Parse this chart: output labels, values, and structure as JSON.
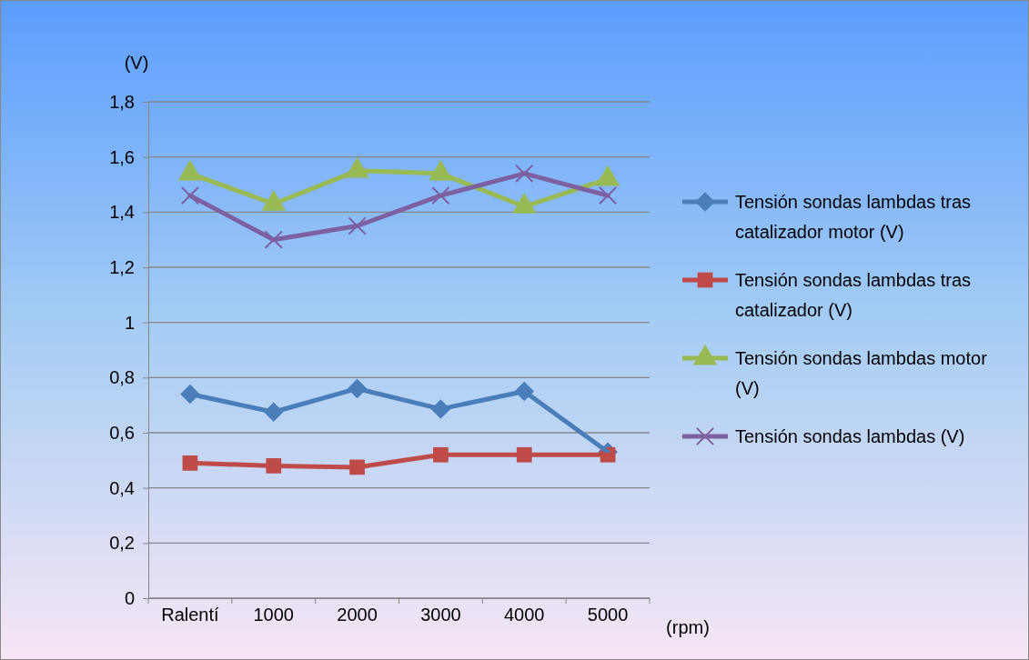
{
  "chart_data": {
    "type": "line",
    "categories": [
      "Ralentí",
      "1000",
      "2000",
      "3000",
      "4000",
      "5000"
    ],
    "ylabel": "(V)",
    "xlabel": "(rpm)",
    "ylim": [
      0,
      1.8
    ],
    "yticks": [
      0,
      {
        "value": 0.2,
        "label": "0,2"
      },
      {
        "value": 0.4,
        "label": "0,4"
      },
      {
        "value": 0.6,
        "label": "0,6"
      },
      {
        "value": 0.8,
        "label": "0,8"
      },
      1,
      {
        "value": 1.2,
        "label": "1,2"
      },
      {
        "value": 1.4,
        "label": "1,4"
      },
      {
        "value": 1.6,
        "label": "1,6"
      },
      {
        "value": 1.8,
        "label": "1,8"
      }
    ],
    "grid": "y",
    "legend": "right",
    "line_style": "solid",
    "series": [
      {
        "name": "Tensión sondas lambdas tras catalizador motor (V)",
        "color": "#4a7ebb",
        "marker": "diamond",
        "values": [
          0.74,
          0.675,
          0.76,
          0.686,
          0.75,
          0.53
        ]
      },
      {
        "name": "Tensión sondas lambdas tras catalizador (V)",
        "color": "#be4b48",
        "marker": "square",
        "values": [
          0.49,
          0.48,
          0.475,
          0.52,
          0.52,
          0.52
        ]
      },
      {
        "name": "Tensión sondas lambdas motor (V)",
        "color": "#98b954",
        "marker": "triangle",
        "values": [
          1.54,
          1.43,
          1.55,
          1.54,
          1.42,
          1.52
        ]
      },
      {
        "name": "Tensión sondas lambdas (V)",
        "color": "#7d60a0",
        "marker": "cross",
        "values": [
          1.46,
          1.3,
          1.35,
          1.46,
          1.54,
          1.46
        ]
      }
    ]
  }
}
